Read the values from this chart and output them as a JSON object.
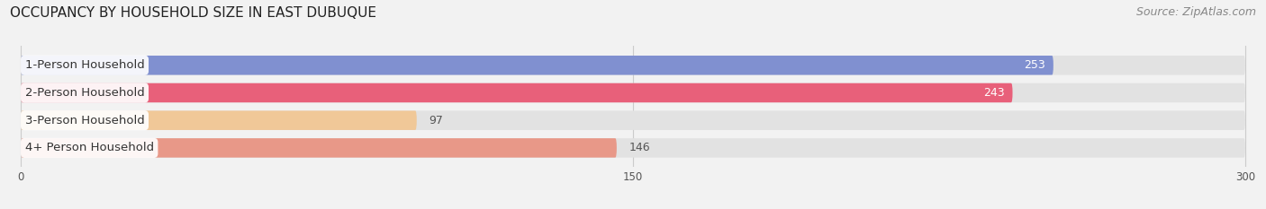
{
  "title": "OCCUPANCY BY HOUSEHOLD SIZE IN EAST DUBUQUE",
  "source": "Source: ZipAtlas.com",
  "categories": [
    "1-Person Household",
    "2-Person Household",
    "3-Person Household",
    "4+ Person Household"
  ],
  "values": [
    253,
    243,
    97,
    146
  ],
  "bar_colors": [
    "#8090d0",
    "#e8607a",
    "#f0c898",
    "#e89888"
  ],
  "bar_label_colors": [
    "white",
    "white",
    "#666666",
    "#666666"
  ],
  "xlim_data": [
    0,
    300
  ],
  "xticks": [
    0,
    150,
    300
  ],
  "background_color": "#f2f2f2",
  "bar_bg_color": "#e2e2e2",
  "title_fontsize": 11,
  "source_fontsize": 9,
  "label_fontsize": 9.5,
  "value_fontsize": 9
}
